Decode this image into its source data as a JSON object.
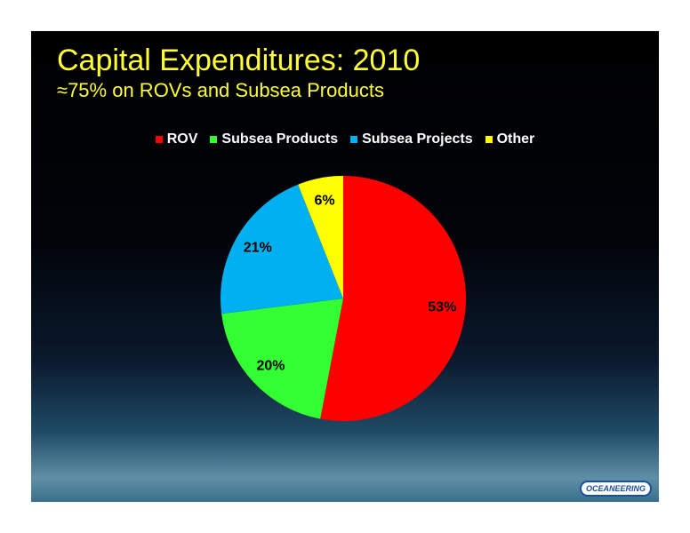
{
  "title": "Capital Expenditures:  2010",
  "subtitle": "≈75% on ROVs and Subsea Products",
  "logo": "OCEANEERING",
  "chart_data": {
    "type": "pie",
    "categories": [
      "ROV",
      "Subsea Products",
      "Subsea Projects",
      "Other"
    ],
    "values": [
      53,
      20,
      21,
      6
    ],
    "value_labels": [
      "53%",
      "20%",
      "21%",
      "6%"
    ],
    "colors": [
      "#ff0000",
      "#33ff33",
      "#00b0f0",
      "#ffff00"
    ],
    "legend": "top"
  }
}
